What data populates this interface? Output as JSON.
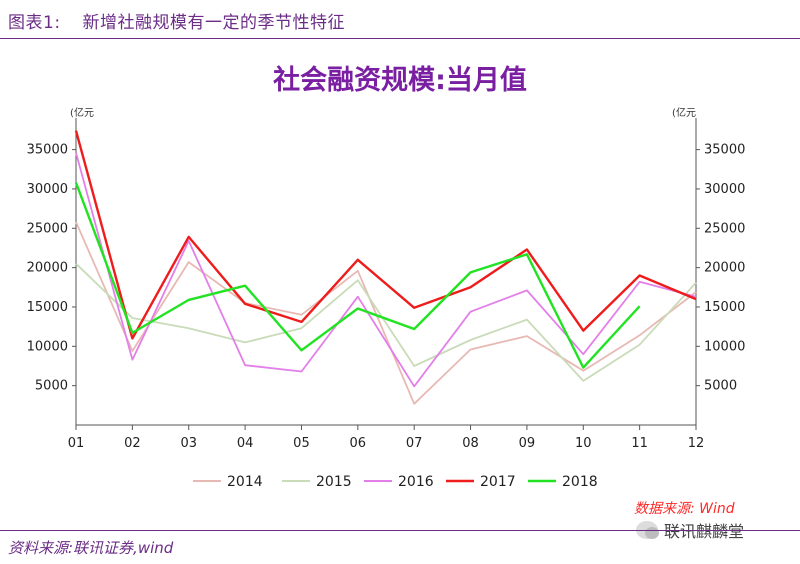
{
  "header": {
    "figure_number": "图表1:",
    "figure_caption": "新增社融规模有一定的季节性特征"
  },
  "chart_data": {
    "type": "line",
    "title": "社会融资规模:当月值",
    "ylabel_left": "(亿元",
    "ylabel_right": "(亿元",
    "categories": [
      "01",
      "02",
      "03",
      "04",
      "05",
      "06",
      "07",
      "08",
      "09",
      "10",
      "11",
      "12"
    ],
    "ylim": [
      0,
      38000
    ],
    "yticks": [
      5000,
      10000,
      15000,
      20000,
      25000,
      30000,
      35000
    ],
    "series": [
      {
        "name": "2014",
        "color": "#e8b9b4",
        "values": [
          25800,
          9400,
          20700,
          15500,
          14000,
          19600,
          2700,
          9600,
          11300,
          6900,
          11400,
          16900
        ]
      },
      {
        "name": "2015",
        "color": "#c9dbb8",
        "values": [
          20500,
          13600,
          12300,
          10500,
          12300,
          18400,
          7500,
          10800,
          13400,
          5600,
          10200,
          18100
        ]
      },
      {
        "name": "2016",
        "color": "#e27fe8",
        "values": [
          34600,
          8300,
          23400,
          7600,
          6800,
          16300,
          4900,
          14400,
          17100,
          9000,
          18200,
          16300
        ]
      },
      {
        "name": "2017",
        "color": "#ee1c1c",
        "values": [
          37400,
          11000,
          23900,
          15400,
          13100,
          21000,
          14900,
          17500,
          22300,
          12000,
          19000,
          16000
        ]
      },
      {
        "name": "2018",
        "color": "#22e322",
        "values": [
          30800,
          11700,
          15900,
          17700,
          9500,
          14800,
          12200,
          19400,
          21700,
          7300,
          15100,
          null
        ]
      }
    ],
    "grid": false,
    "legend_position": "bottom"
  },
  "source_red": "数据来源: Wind",
  "watermark": "联讯麒麟堂",
  "source_bottom": "资料来源:联讯证券,wind"
}
